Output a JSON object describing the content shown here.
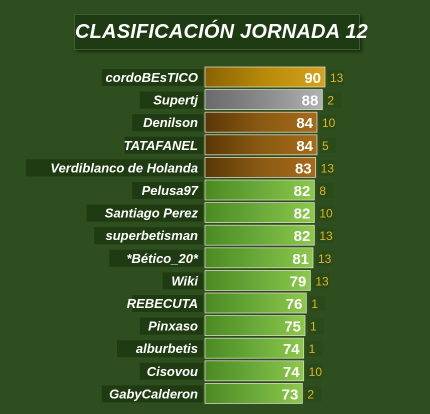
{
  "colors": {
    "background": "#2e4e1f",
    "gold": "#b88a0a",
    "silver": "#8a8a8a",
    "bronze": "#8a5a12",
    "green": "#6aaa3a",
    "label_bg": "#1e3a10",
    "number": "#e0b422"
  },
  "chart_data": {
    "type": "bar",
    "orientation": "horizontal",
    "title": "CLASIFICACIÓN JORNADA 12",
    "categories": [
      "cordoBEsTICO",
      "Supertj",
      "Denilson",
      "TATAFANEL",
      "Verdiblanco de Holanda",
      "Pelusa97",
      "Santiago Perez",
      "superbetisman",
      "*Bético_20*",
      "Wiki",
      "REBECUTA",
      "Pinxaso",
      "alburbetis",
      "Cisovou",
      "GabyCalderon"
    ],
    "values": [
      90,
      88,
      84,
      84,
      83,
      82,
      82,
      82,
      81,
      79,
      76,
      75,
      74,
      74,
      73
    ],
    "side_numbers": [
      13,
      2,
      10,
      5,
      13,
      8,
      10,
      13,
      13,
      13,
      1,
      1,
      1,
      10,
      2
    ],
    "bar_colors": [
      "gold",
      "silver",
      "bronze",
      "bronze",
      "bronze",
      "green",
      "green",
      "green",
      "green",
      "green",
      "green",
      "green",
      "green",
      "green",
      "green"
    ],
    "xlim": [
      0,
      90
    ],
    "grid": false,
    "legend": "none"
  }
}
